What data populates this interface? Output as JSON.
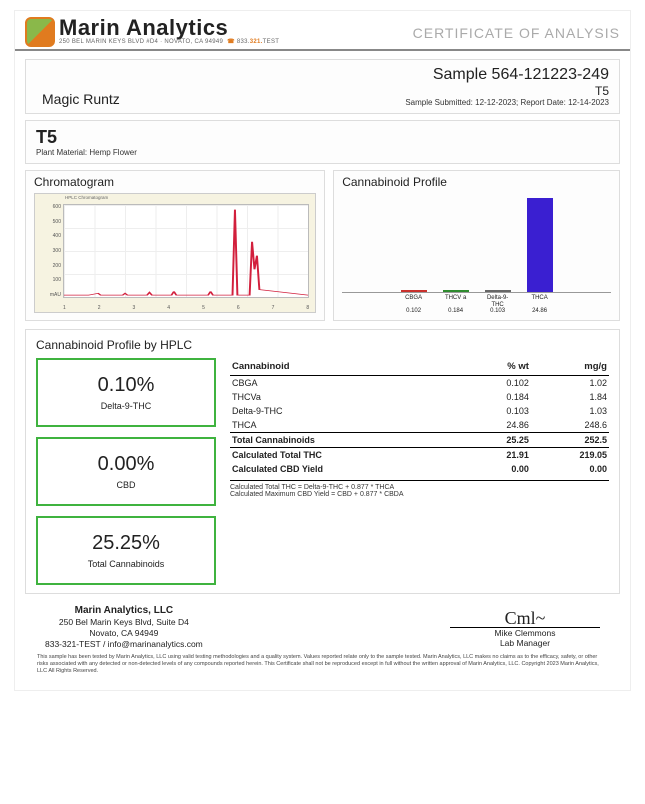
{
  "header": {
    "company": "Marin Analytics",
    "address_line": "250 BEL MARIN KEYS BLVD #D4 · NOVATO, CA 94949",
    "phone_prefix": "833.",
    "phone_accent": "321.",
    "phone_suffix": "TEST",
    "cert_title": "CERTIFICATE OF ANALYSIS"
  },
  "sample": {
    "name": "Magic Runtz",
    "id": "Sample 564-121223-249",
    "tag": "T5",
    "dates": "Sample Submitted: 12-12-2023;  Report Date: 12-14-2023",
    "material_label": "T5",
    "material_desc": "Plant Material: Hemp Flower"
  },
  "chromatogram": {
    "title": "Chromatogram",
    "header_text": "HPLC Chromatogram",
    "x_ticks": [
      "1",
      "2",
      "3",
      "4",
      "5",
      "6",
      "7",
      "8"
    ],
    "y_ticks": [
      "600",
      "500",
      "400",
      "300",
      "200",
      "100",
      "mAU"
    ],
    "stroke": "#d21f3c",
    "bg": "#f6f3e1"
  },
  "profile": {
    "title": "Cannabinoid Profile",
    "bars": [
      {
        "label": "CBGA",
        "value": 0.102,
        "color": "#c9302c"
      },
      {
        "label": "THCV a",
        "value": 0.184,
        "color": "#2e8b2e"
      },
      {
        "label": "Delta-9-THC",
        "value": 0.103,
        "color": "#666"
      },
      {
        "label": "THCA",
        "value": 24.86,
        "color": "#3a1fd1"
      }
    ],
    "max": 25
  },
  "hplc": {
    "title": "Cannabinoid Profile by HPLC",
    "stats": [
      {
        "value": "0.10%",
        "label": "Delta-9-THC"
      },
      {
        "value": "0.00%",
        "label": "CBD"
      },
      {
        "value": "25.25%",
        "label": "Total Cannabinoids"
      }
    ],
    "columns": [
      "Cannabinoid",
      "% wt",
      "mg/g"
    ],
    "rows": [
      {
        "name": "CBGA",
        "wt": "0.102",
        "mg": "1.02"
      },
      {
        "name": "THCVa",
        "wt": "0.184",
        "mg": "1.84"
      },
      {
        "name": "Delta-9-THC",
        "wt": "0.103",
        "mg": "1.03"
      },
      {
        "name": "THCA",
        "wt": "24.86",
        "mg": "248.6"
      }
    ],
    "totals": {
      "name": "Total Cannabinoids",
      "wt": "25.25",
      "mg": "252.5"
    },
    "calc_thc": {
      "name": "Calculated Total THC",
      "wt": "21.91",
      "mg": "219.05"
    },
    "calc_cbd": {
      "name": "Calculated CBD Yield",
      "wt": "0.00",
      "mg": "0.00"
    },
    "note1": "Calculated Total THC = Delta-9-THC + 0.877 * THCA",
    "note2": "Calculated Maximum CBD Yield = CBD + 0.877 * CBDA"
  },
  "footer": {
    "company": "Marin Analytics, LLC",
    "addr1": "250 Bel Marin Keys Blvd, Suite D4",
    "addr2": "Novato, CA 94949",
    "addr3": "833-321-TEST / info@marinanalytics.com",
    "signer": "Mike Clemmons",
    "role": "Lab Manager",
    "disclaimer": "This sample has been tested by Marin Analytics, LLC using valid testing methodologies and a quality system. Values reported relate only to the sample tested. Marin Analytics, LLC makes no claims as to the efficacy, safety, or other risks associated with any detected or non-detected levels of any compounds reported herein. This Certificate shall not be reproduced except in full without the written approval of Marin Analytics, LLC.    Copyright 2023 Marin Analytics, LLC All Rights Reserved."
  }
}
